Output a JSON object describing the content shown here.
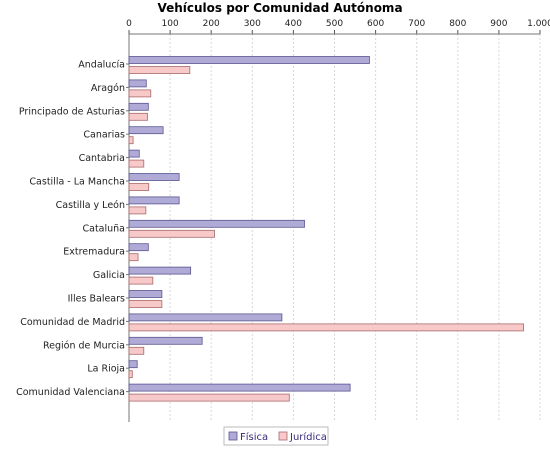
{
  "chart_data": {
    "type": "bar",
    "orientation": "horizontal",
    "title": "Vehículos por Comunidad Autónoma",
    "xlabel": "",
    "ylabel": "",
    "xlim": [
      0,
      1000
    ],
    "x_ticks": [
      0,
      100,
      200,
      300,
      400,
      500,
      600,
      700,
      800,
      900,
      1000
    ],
    "x_tick_labels": [
      "0",
      "100",
      "200",
      "300",
      "400",
      "500",
      "600",
      "700",
      "800",
      "900",
      "1.000"
    ],
    "axis_position": "top",
    "grid": true,
    "legend_position": "bottom-center",
    "categories": [
      "Andalucía",
      "Aragón",
      "Principado de Asturias",
      "Canarias",
      "Cantabria",
      "Castilla - La Mancha",
      "Castilla y León",
      "Cataluña",
      "Extremadura",
      "Galicia",
      "Illes Balears",
      "Comunidad de Madrid",
      "Región de Murcia",
      "La Rioja",
      "Comunidad Valenciana"
    ],
    "series": [
      {
        "name": "Física",
        "color": "#b0aad6",
        "stroke": "#5a5590",
        "values": [
          585,
          42,
          47,
          83,
          25,
          122,
          122,
          427,
          47,
          150,
          80,
          372,
          178,
          20,
          538
        ]
      },
      {
        "name": "Jurídica",
        "color": "#f7c9c9",
        "stroke": "#a86a6a",
        "values": [
          148,
          53,
          45,
          10,
          36,
          48,
          41,
          208,
          22,
          58,
          80,
          960,
          36,
          8,
          390
        ]
      }
    ]
  }
}
